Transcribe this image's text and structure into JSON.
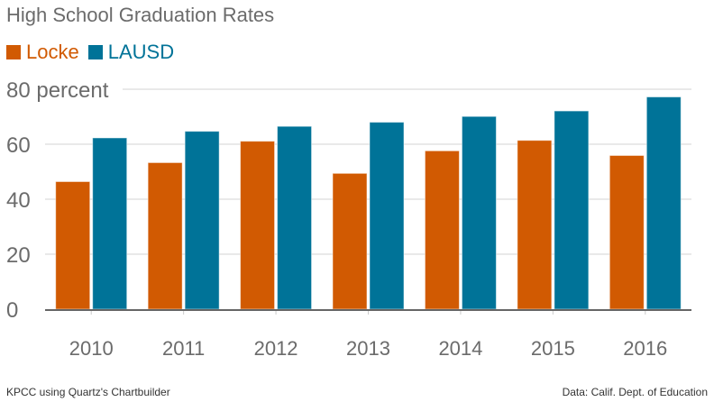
{
  "colors": {
    "locke": "#D15A02",
    "lausd": "#007398"
  },
  "chart_data": {
    "type": "bar",
    "title": "High School Graduation Rates",
    "categories": [
      "2010",
      "2011",
      "2012",
      "2013",
      "2014",
      "2015",
      "2016"
    ],
    "series": [
      {
        "name": "Locke",
        "values": [
          46.4,
          53.3,
          61.1,
          49.4,
          57.6,
          61.4,
          55.9
        ]
      },
      {
        "name": "LAUSD",
        "values": [
          62.3,
          64.7,
          66.5,
          68.0,
          70.1,
          72.1,
          77.2
        ]
      }
    ],
    "ylim": [
      0,
      80
    ],
    "yticks": [
      0,
      20,
      40,
      60,
      80
    ],
    "ytick_labels": [
      "0",
      "20",
      "40",
      "60",
      "80 percent"
    ],
    "xlabel": "",
    "ylabel": "",
    "grid": true,
    "legend": "top-left"
  },
  "footer": {
    "source_left": "KPCC using Quartz's Chartbuilder",
    "source_right": "Data: Calif. Dept. of Education"
  }
}
